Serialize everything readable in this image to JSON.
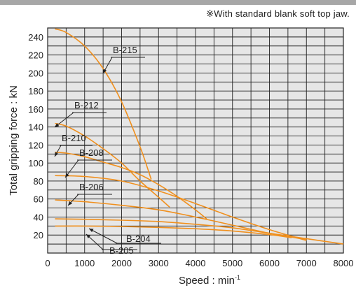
{
  "header": {
    "note": "※With standard blank soft top jaw."
  },
  "colors": {
    "curve": "#f0901e",
    "grid": "#222222",
    "plot_bg": "#e6e6e6",
    "top_bar": "#a7a7a7"
  },
  "chart_data": {
    "type": "line",
    "xlabel": "Speed : min",
    "xlabel_sup": "-1",
    "ylabel": "Total gripping force : kN",
    "xlim": [
      0,
      8000
    ],
    "ylim": [
      0,
      250
    ],
    "xticks": [
      0,
      1000,
      2000,
      3000,
      4000,
      5000,
      6000,
      7000,
      8000
    ],
    "yticks": [
      20,
      40,
      60,
      80,
      100,
      120,
      140,
      160,
      180,
      200,
      220,
      240
    ],
    "grid": true,
    "series": [
      {
        "name": "B-215",
        "x": [
          200,
          500,
          1000,
          1500,
          2000,
          2500,
          2800
        ],
        "y": [
          249,
          245,
          230,
          205,
          168,
          118,
          82
        ]
      },
      {
        "name": "B-212",
        "x": [
          200,
          500,
          1000,
          1500,
          2000,
          2500,
          3000,
          3300
        ],
        "y": [
          144,
          141,
          130,
          116,
          100,
          80,
          62,
          51
        ]
      },
      {
        "name": "B-210",
        "x": [
          200,
          500,
          1000,
          1500,
          2000,
          2500,
          3000,
          3500,
          4000,
          4300
        ],
        "y": [
          112,
          111,
          107,
          101,
          95,
          87,
          76,
          63,
          48,
          38
        ]
      },
      {
        "name": "B-208",
        "x": [
          200,
          1000,
          2000,
          3000,
          4000,
          5000,
          6000,
          7000
        ],
        "y": [
          86,
          85,
          80,
          69,
          55,
          40,
          26,
          14
        ]
      },
      {
        "name": "B-206",
        "x": [
          200,
          1000,
          2000,
          3000,
          4000,
          5000,
          6000,
          7000
        ],
        "y": [
          59,
          57,
          53,
          48,
          40,
          31,
          22,
          15
        ]
      },
      {
        "name": "B-204",
        "x": [
          200,
          1000,
          2000,
          3000,
          4000,
          5000,
          6000,
          7000,
          8000
        ],
        "y": [
          38,
          37.5,
          36.5,
          35,
          32,
          28,
          22,
          16,
          10
        ]
      },
      {
        "name": "B-205",
        "x": [
          200,
          1000,
          2000,
          3000,
          4000,
          5000,
          6000,
          6600
        ],
        "y": [
          30,
          30,
          29.5,
          28.5,
          27,
          24.5,
          20.5,
          17
        ]
      }
    ]
  }
}
